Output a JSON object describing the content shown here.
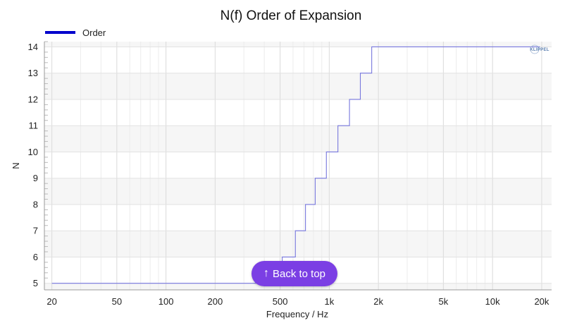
{
  "chart_data": {
    "type": "line",
    "title": "N(f) Order of Expansion",
    "xlabel": "Frequency / Hz",
    "ylabel": "N",
    "xscale": "log",
    "xlim": [
      18,
      23000
    ],
    "ylim": [
      4.75,
      14.2
    ],
    "x_ticks": [
      20,
      50,
      100,
      200,
      500,
      1000,
      2000,
      5000,
      10000,
      20000
    ],
    "x_tick_labels": [
      "20",
      "50",
      "100",
      "200",
      "500",
      "1k",
      "2k",
      "5k",
      "10k",
      "20k"
    ],
    "y_ticks": [
      5,
      6,
      7,
      8,
      9,
      10,
      11,
      12,
      13,
      14
    ],
    "grid": true,
    "legend_position": "top-left",
    "series": [
      {
        "name": "Order",
        "color": "#0000cc",
        "line_color": "#7777dd",
        "step": true,
        "points": [
          [
            20,
            5
          ],
          [
            515,
            5
          ],
          [
            515,
            6
          ],
          [
            620,
            6
          ],
          [
            620,
            7
          ],
          [
            715,
            7
          ],
          [
            715,
            8
          ],
          [
            820,
            8
          ],
          [
            820,
            9
          ],
          [
            960,
            9
          ],
          [
            960,
            10
          ],
          [
            1130,
            10
          ],
          [
            1130,
            11
          ],
          [
            1330,
            11
          ],
          [
            1330,
            12
          ],
          [
            1550,
            12
          ],
          [
            1550,
            13
          ],
          [
            1820,
            13
          ],
          [
            1820,
            14
          ],
          [
            19500,
            14
          ]
        ]
      }
    ]
  },
  "logo": {
    "text": "KLIPPEL"
  },
  "back_to_top": {
    "label": "Back to top",
    "icon": "arrow-up-icon"
  }
}
